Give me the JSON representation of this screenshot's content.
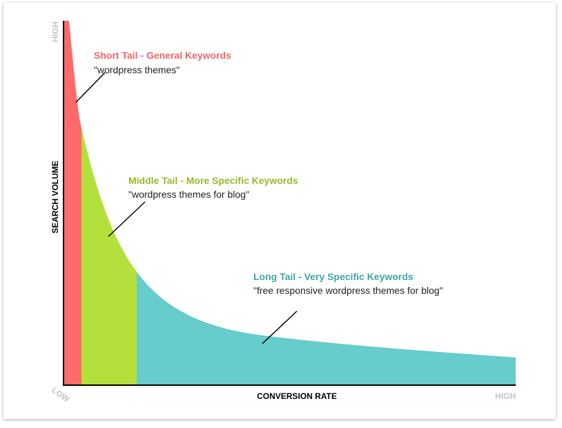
{
  "axes": {
    "y_high": "HIGH",
    "y_label": "SEARCH VOLUME",
    "origin": "LOW",
    "x_label": "CONVERSION RATE",
    "x_high": "HIGH"
  },
  "segments": [
    {
      "title": "Short Tail - General Keywords",
      "example": "\"wordpress themes\""
    },
    {
      "title": "Middle Tail - More Specific Keywords",
      "example": "\"wordpress themes for blog\""
    },
    {
      "title": "Long Tail - Very Specific Keywords",
      "example": "\"free responsive wordpress themes for blog\""
    }
  ]
}
